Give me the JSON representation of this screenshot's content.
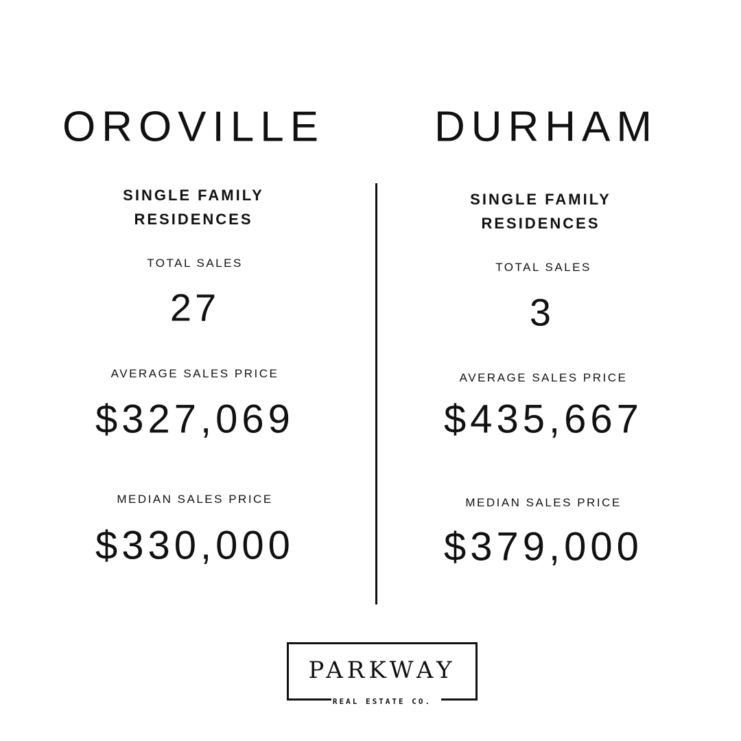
{
  "left": {
    "city": "OROVILLE",
    "subtitle_line1": "SINGLE FAMILY",
    "subtitle_line2": "RESIDENCES",
    "total_sales_label": "TOTAL SALES",
    "total_sales": "27",
    "avg_label": "AVERAGE SALES PRICE",
    "avg_price": "$327,069",
    "median_label": "MEDIAN SALES PRICE",
    "median_price": "$330,000"
  },
  "right": {
    "city": "DURHAM",
    "subtitle_line1": "SINGLE FAMILY",
    "subtitle_line2": "RESIDENCES",
    "total_sales_label": "TOTAL SALES",
    "total_sales": "3",
    "avg_label": "AVERAGE SALES PRICE",
    "avg_price": "$435,667",
    "median_label": "MEDIAN SALES PRICE",
    "median_price": "$379,000"
  },
  "logo": {
    "name": "PARKWAY",
    "tagline": "REAL ESTATE CO."
  }
}
